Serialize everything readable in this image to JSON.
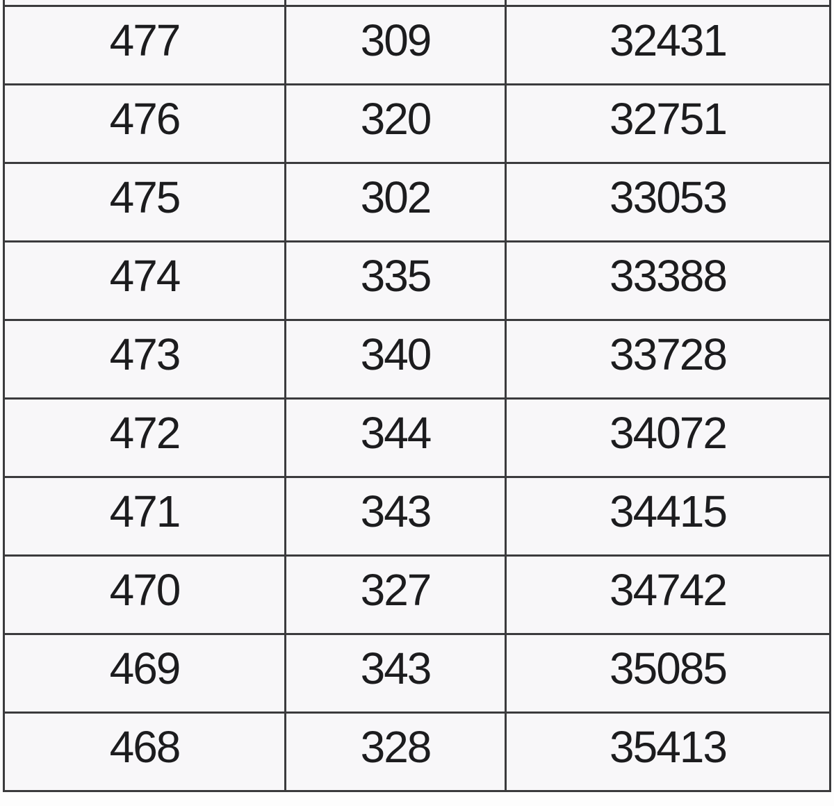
{
  "table": {
    "rows": [
      [
        "477",
        "309",
        "32431"
      ],
      [
        "476",
        "320",
        "32751"
      ],
      [
        "475",
        "302",
        "33053"
      ],
      [
        "474",
        "335",
        "33388"
      ],
      [
        "473",
        "340",
        "33728"
      ],
      [
        "472",
        "344",
        "34072"
      ],
      [
        "471",
        "343",
        "34415"
      ],
      [
        "470",
        "327",
        "34742"
      ],
      [
        "469",
        "343",
        "35085"
      ],
      [
        "468",
        "328",
        "35413"
      ]
    ]
  },
  "colors": {
    "page_background": "#fdfdfd",
    "cell_background": "#f8f7f9",
    "border": "#3b3b3d",
    "text": "#1c1c1e"
  }
}
